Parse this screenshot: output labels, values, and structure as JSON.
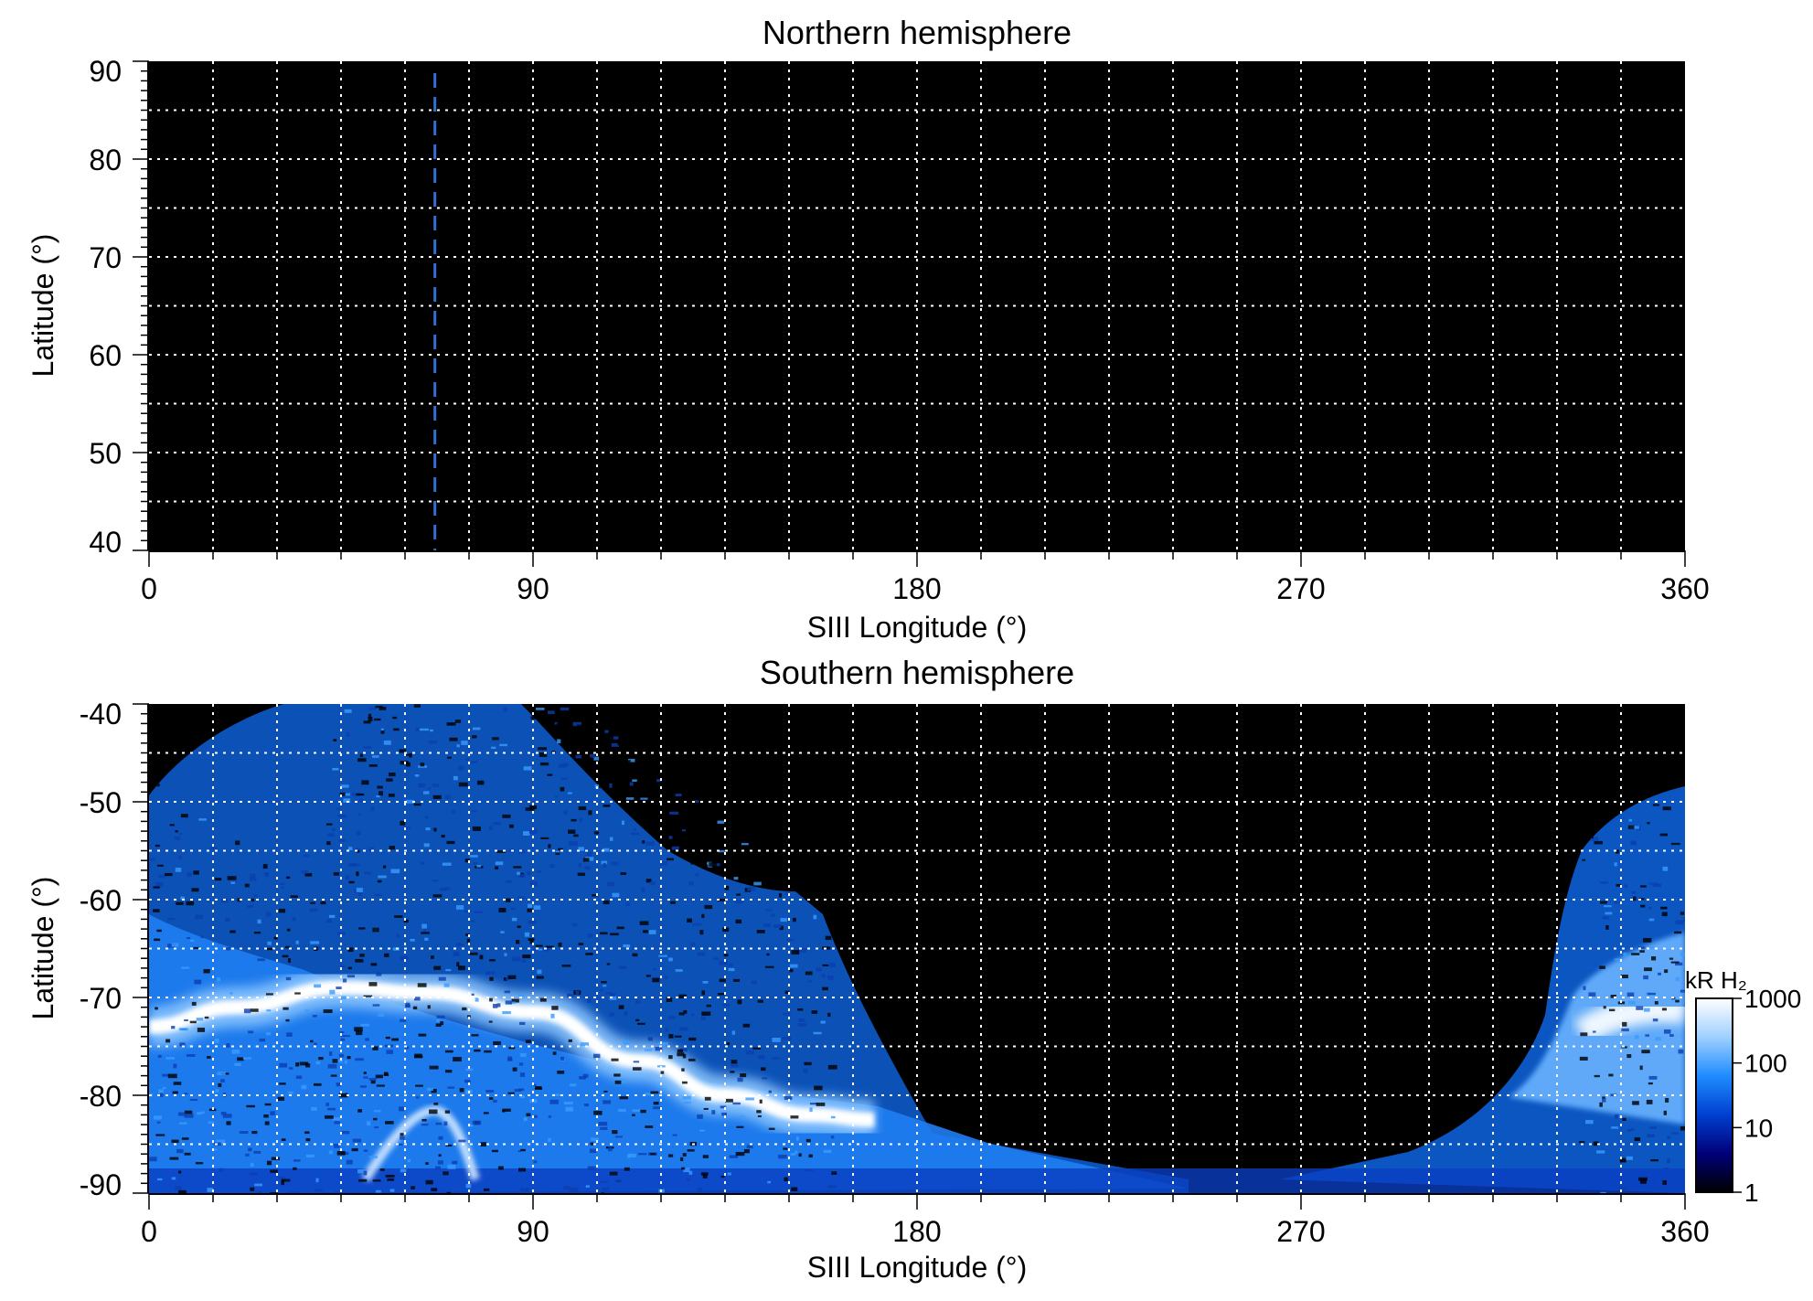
{
  "chart_data": [
    {
      "type": "heatmap",
      "title": "Northern hemisphere",
      "xlabel": "SIII Longitude (°)",
      "ylabel": "Latitude (°)",
      "xlim": [
        0,
        360
      ],
      "ylim": [
        40,
        90
      ],
      "x_ticks": [
        "0",
        "90",
        "180",
        "270",
        "360"
      ],
      "y_ticks": [
        "40",
        "50",
        "60",
        "70",
        "80",
        "90"
      ],
      "grid": "dotted, every 15° longitude and 5° latitude",
      "background": "no emission (black)",
      "reference_line": {
        "style": "dashed",
        "color": "#2f6fd6",
        "longitude": 67
      }
    },
    {
      "type": "heatmap",
      "title": "Southern hemisphere",
      "xlabel": "SIII Longitude (°)",
      "ylabel": "Latitude (°)",
      "xlim": [
        0,
        360
      ],
      "ylim": [
        -90,
        -40
      ],
      "x_ticks": [
        "0",
        "90",
        "180",
        "270",
        "360"
      ],
      "y_ticks": [
        "-40",
        "-50",
        "-60",
        "-70",
        "-80",
        "-90"
      ],
      "grid": "dotted, every 15° longitude and 5° latitude",
      "main_oval": {
        "description": "bright emission band",
        "points": [
          [
            0,
            -73
          ],
          [
            20,
            -71
          ],
          [
            45,
            -69
          ],
          [
            65,
            -69.5
          ],
          [
            90,
            -71.5
          ],
          [
            115,
            -76.5
          ],
          [
            135,
            -80
          ],
          [
            155,
            -82
          ],
          [
            170,
            -82.5
          ]
        ],
        "intensity_kR": 1000
      },
      "colorbar": {
        "label": "kR H₂",
        "scale": "log",
        "range": [
          1,
          1000
        ],
        "ticks": [
          "1",
          "10",
          "100",
          "1000"
        ],
        "colors": [
          "#000000",
          "#00007a",
          "#0040d0",
          "#1f8cff",
          "#9fd0ff",
          "#ffffff"
        ]
      }
    }
  ]
}
